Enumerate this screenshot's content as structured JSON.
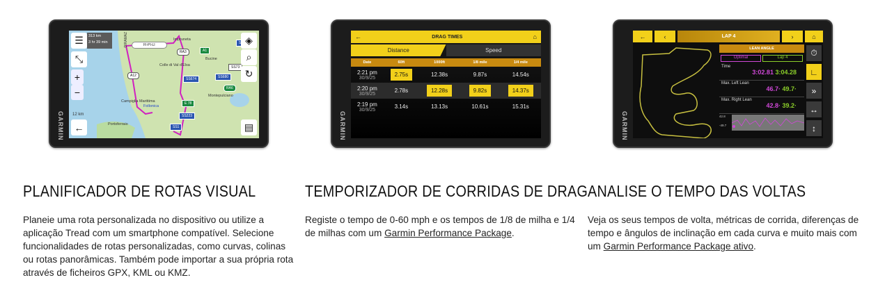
{
  "devices": {
    "brand": "GARMIN",
    "map": {
      "distance": "313 km",
      "duration": "3 hr 39 min",
      "scale": "12 km",
      "places": [
        "Impruneta",
        "Bucine",
        "Colle di Val d'Elsa",
        "Montepulciano",
        "Campiglia Marittima",
        "Follonica",
        "Portoferraio",
        "DIRAMAZ"
      ],
      "shields": [
        "FI-PI-LI",
        "RA3",
        "A1",
        "A12",
        "SS674",
        "SS680",
        "RA6",
        "E 78",
        "SS223",
        "SS1",
        "SS73",
        "SS"
      ]
    },
    "drag": {
      "title": "DRAG TIMES",
      "tabs": [
        "Distance",
        "Speed"
      ],
      "columns": [
        "Date",
        "60ft",
        "1000ft",
        "1/8 mile",
        "1/4 mile"
      ],
      "rows": [
        {
          "time": "2:21 pm",
          "date": "30/9/25",
          "values": [
            "2.75s",
            "12.38s",
            "9.87s",
            "14.54s"
          ],
          "highlight": [
            true,
            false,
            false,
            false
          ]
        },
        {
          "time": "2:20 pm",
          "date": "30/9/25",
          "values": [
            "2.78s",
            "12.28s",
            "9.82s",
            "14.37s"
          ],
          "highlight": [
            false,
            true,
            true,
            true
          ]
        },
        {
          "time": "2:19 pm",
          "date": "30/9/25",
          "values": [
            "3.14s",
            "13.13s",
            "10.61s",
            "15.31s"
          ],
          "highlight": [
            false,
            false,
            false,
            false
          ]
        }
      ],
      "accent": "#f2d01a"
    },
    "lap": {
      "title": "LAP 4",
      "panel": "LEAN ANGLE",
      "compare_a": "Optimal",
      "compare_b": "Lap 4",
      "metrics": [
        {
          "label": "Time",
          "a": "3:02.81",
          "b": "3:04.28"
        },
        {
          "label": "Max. Left Lean",
          "a": "46.7·",
          "b": "49.7·"
        },
        {
          "label": "Max. Right Lean",
          "a": "42.8·",
          "b": "39.2·"
        }
      ],
      "graph_max": "42.8",
      "graph_min": "-49.7",
      "color_a": "#d048d8",
      "color_b": "#8ccf2a"
    }
  },
  "features": [
    {
      "title": "PLANIFICADOR DE ROTAS VISUAL",
      "text": "Planeie uma rota personalizada no dispositivo ou utilize a aplicação Tread com um smartphone compatível. Selecione funcionalidades de rotas personalizadas, como curvas, colinas ou rotas panorâmicas. Também pode importar a sua própria rota através de ficheiros GPX, KML ou KMZ."
    },
    {
      "title": "TEMPORIZADOR DE CORRIDAS DE DRAG",
      "text": "Registe o tempo de 0-60 mph e os tempos de 1/8 de milha e 1/4 de milhas com um ",
      "link": "Garmin Performance Package",
      "after": "."
    },
    {
      "title": "ANALISE O TEMPO DAS VOLTAS",
      "text": "Veja os seus tempos de volta, métricas de corrida, diferenças de tempo e ângulos de inclinação em cada curva e muito mais com um ",
      "link": "Garmin Performance Package ativo",
      "after": "."
    }
  ]
}
